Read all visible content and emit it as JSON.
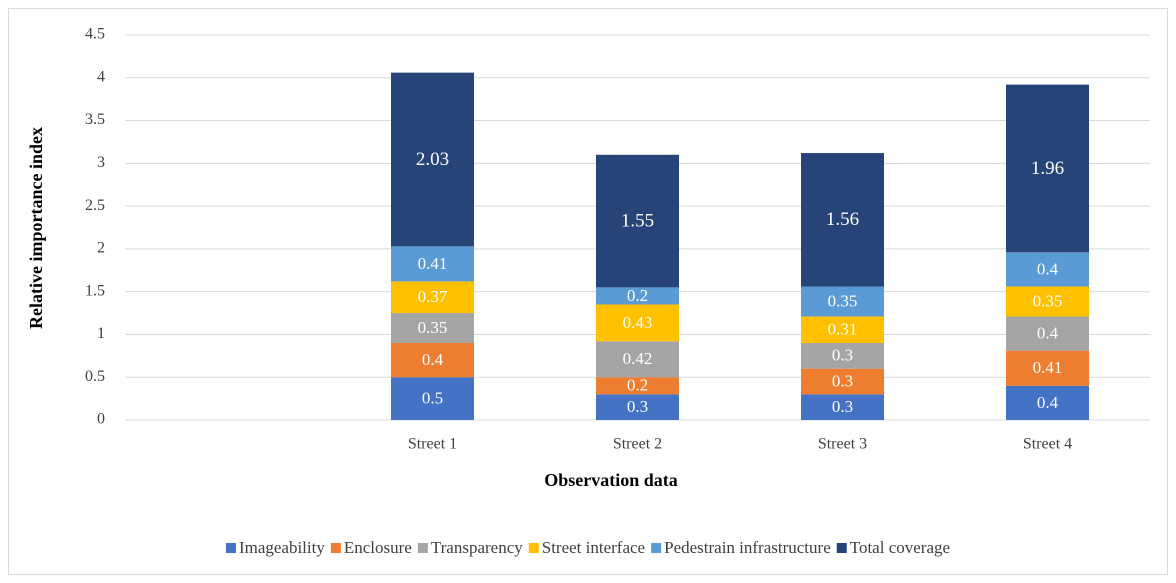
{
  "chart_data": {
    "type": "stacked_bar",
    "xlabel": "Observation data",
    "ylabel": "Relative importance index",
    "categories": [
      null,
      "Street 1",
      "Street 2",
      "Street 3",
      "Street 4"
    ],
    "series": [
      {
        "name": "Imageability",
        "color": "#4472c4",
        "values": [
          null,
          0.5,
          0.3,
          0.3,
          0.4
        ]
      },
      {
        "name": "Enclosure",
        "color": "#ed7d31",
        "values": [
          null,
          0.4,
          0.2,
          0.3,
          0.41
        ]
      },
      {
        "name": "Transparency",
        "color": "#a5a5a5",
        "values": [
          null,
          0.35,
          0.42,
          0.3,
          0.4
        ]
      },
      {
        "name": "Street interface",
        "color": "#ffc000",
        "values": [
          null,
          0.37,
          0.43,
          0.31,
          0.35
        ]
      },
      {
        "name": "Pedestrain infrastructure",
        "color": "#5b9bd5",
        "values": [
          null,
          0.41,
          0.2,
          0.35,
          0.4
        ]
      },
      {
        "name": "Total coverage",
        "color": "#264478",
        "values": [
          null,
          2.03,
          1.55,
          1.56,
          1.96
        ]
      }
    ],
    "ylim": [
      0,
      4.5
    ],
    "yticks": [
      0,
      0.5,
      1,
      1.5,
      2,
      2.5,
      3,
      3.5,
      4,
      4.5
    ],
    "grid": true,
    "legend": "bottom"
  }
}
